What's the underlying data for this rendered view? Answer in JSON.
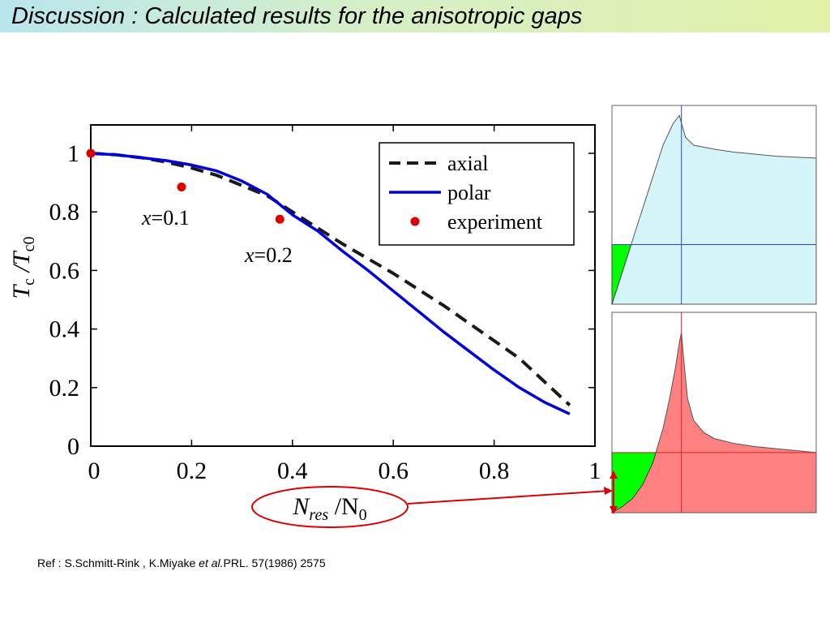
{
  "slide": {
    "title": "Discussion : Calculated results for the anisotropic gaps",
    "reference": {
      "prefix": "Ref : S.Schmitt-Rink , K.Miyake ",
      "etal": "et al.",
      "suffix": "PRL. 57(1986) 2575"
    }
  },
  "colors": {
    "axial": "#1a1a1a",
    "polar": "#0000dd",
    "experiment": "#dd0000",
    "highlight": "#dd0000",
    "panel_top_fill": "#d4f6fb",
    "panel_bottom_fill": "#ff8080",
    "green_fill": "#00ff00"
  },
  "chart_data": [
    {
      "type": "line",
      "title": "",
      "xlabel": {
        "main": "N",
        "sub": "res",
        "sep": " /N",
        "sub2": "0"
      },
      "ylabel": {
        "main": "T",
        "sub": "c",
        "sep": " /T",
        "sub2": "c0"
      },
      "xlim": [
        0,
        1
      ],
      "ylim": [
        0,
        1.1
      ],
      "xticks": [
        0,
        0.2,
        0.4,
        0.6,
        0.8,
        1
      ],
      "xtick_labels": [
        "0",
        "0.2",
        "0.4",
        "0.6",
        "0.8",
        "1"
      ],
      "yticks": [
        0,
        0.2,
        0.4,
        0.6,
        0.8,
        1
      ],
      "ytick_labels": [
        "0",
        "0.2",
        "0.4",
        "0.6",
        "0.8",
        "1"
      ],
      "legend_position": "top-right",
      "series": [
        {
          "name": "axial",
          "style": "dashed",
          "x": [
            0,
            0.05,
            0.1,
            0.15,
            0.2,
            0.25,
            0.3,
            0.35,
            0.4,
            0.45,
            0.5,
            0.55,
            0.6,
            0.65,
            0.7,
            0.75,
            0.8,
            0.85,
            0.9,
            0.95
          ],
          "y": [
            1.0,
            0.995,
            0.985,
            0.97,
            0.95,
            0.925,
            0.89,
            0.855,
            0.8,
            0.745,
            0.69,
            0.64,
            0.59,
            0.535,
            0.48,
            0.42,
            0.36,
            0.3,
            0.22,
            0.14
          ]
        },
        {
          "name": "polar",
          "style": "solid",
          "x": [
            0,
            0.05,
            0.1,
            0.15,
            0.2,
            0.25,
            0.3,
            0.35,
            0.4,
            0.45,
            0.5,
            0.55,
            0.6,
            0.65,
            0.7,
            0.75,
            0.8,
            0.85,
            0.9,
            0.95
          ],
          "y": [
            1.0,
            0.995,
            0.985,
            0.975,
            0.96,
            0.94,
            0.905,
            0.86,
            0.79,
            0.735,
            0.665,
            0.6,
            0.53,
            0.46,
            0.39,
            0.325,
            0.26,
            0.2,
            0.15,
            0.11
          ]
        },
        {
          "name": "experiment",
          "style": "points",
          "x": [
            0,
            0.18,
            0.375
          ],
          "y": [
            1.0,
            0.885,
            0.775
          ]
        }
      ],
      "annotations": [
        {
          "text_main": "x",
          "text_rest": "=0.1",
          "x": 0.1,
          "y": 0.76
        },
        {
          "text_main": "x",
          "text_rest": "=0.2",
          "x": 0.34,
          "y": 0.645
        }
      ]
    },
    {
      "type": "area",
      "panel": "top",
      "xlim": [
        0,
        1
      ],
      "ylim": [
        0,
        1
      ],
      "note": "density-of-states sketch with linear rise, peak and flat tail",
      "x": [
        0,
        0.05,
        0.1,
        0.15,
        0.2,
        0.25,
        0.3,
        0.33,
        0.34,
        0.36,
        0.4,
        0.5,
        0.6,
        0.7,
        0.8,
        0.9,
        1.0
      ],
      "y": [
        0,
        0.16,
        0.32,
        0.48,
        0.64,
        0.8,
        0.91,
        0.95,
        0.91,
        0.84,
        0.8,
        0.78,
        0.765,
        0.755,
        0.745,
        0.74,
        0.735
      ],
      "hline": 0.3,
      "vline": 0.34
    },
    {
      "type": "area",
      "panel": "bottom",
      "xlim": [
        0,
        1
      ],
      "ylim": [
        0,
        1
      ],
      "note": "density-of-states sketch with sharp peak",
      "x": [
        0,
        0.05,
        0.1,
        0.15,
        0.2,
        0.25,
        0.28,
        0.31,
        0.33,
        0.34,
        0.35,
        0.37,
        0.4,
        0.45,
        0.5,
        0.6,
        0.7,
        0.8,
        0.9,
        1.0
      ],
      "y": [
        0,
        0.03,
        0.07,
        0.14,
        0.25,
        0.42,
        0.56,
        0.72,
        0.85,
        0.9,
        0.78,
        0.57,
        0.46,
        0.4,
        0.37,
        0.345,
        0.33,
        0.32,
        0.31,
        0.3
      ],
      "hline": 0.3,
      "vline": 0.34
    }
  ]
}
